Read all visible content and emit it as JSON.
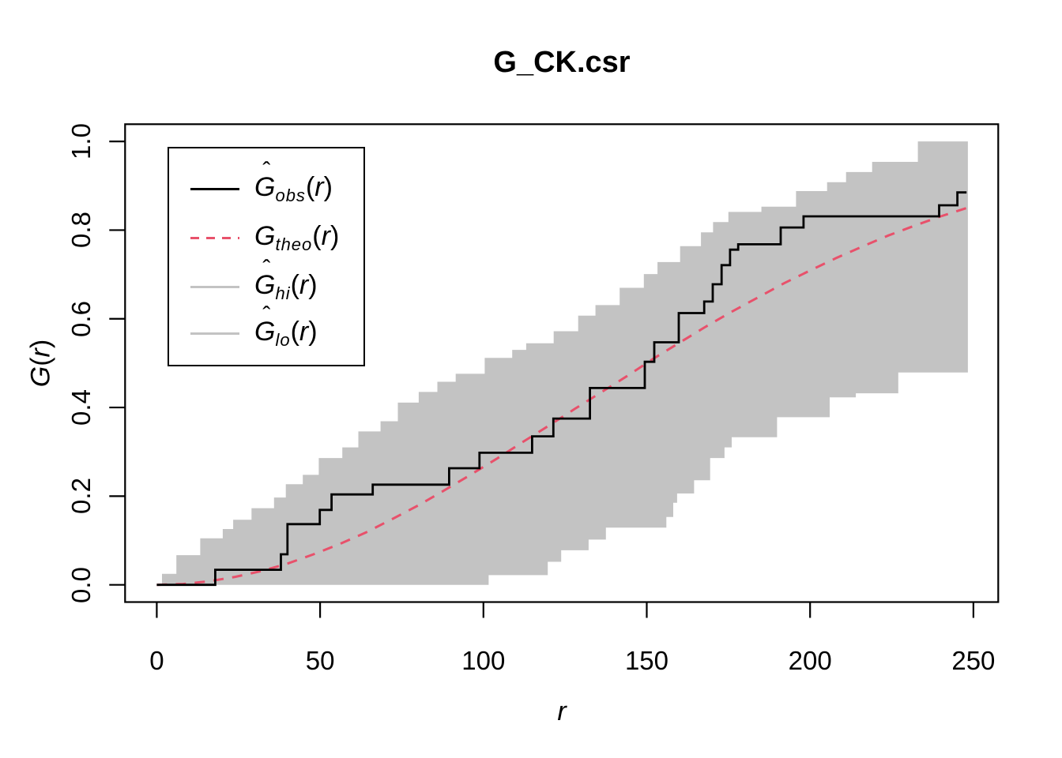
{
  "title": "G_CK.csr",
  "axes": {
    "x": {
      "label": "r",
      "ticks": [
        0,
        50,
        100,
        150,
        200,
        250
      ]
    },
    "y": {
      "label_var": "G",
      "label_open": "(",
      "label_arg": "r",
      "label_close": ")",
      "tick_labels": [
        "0.0",
        "0.2",
        "0.4",
        "0.6",
        "0.8",
        "1.0"
      ],
      "tick_values": [
        0,
        0.2,
        0.4,
        0.6,
        0.8,
        1.0
      ]
    }
  },
  "legend": {
    "entries": [
      {
        "hat": "ˆ",
        "var": "G",
        "sub": "obs",
        "open": "(",
        "argvar": "r",
        "close": ")",
        "style": "obs"
      },
      {
        "hat": "",
        "var": "G",
        "sub": "theo",
        "open": "(",
        "argvar": "r",
        "close": ")",
        "style": "theo"
      },
      {
        "hat": "ˆ",
        "var": "G",
        "sub": "hi",
        "open": "(",
        "argvar": "r",
        "close": ")",
        "style": "hi"
      },
      {
        "hat": "ˆ",
        "var": "G",
        "sub": "lo",
        "open": "(",
        "argvar": "r",
        "close": ")",
        "style": "lo"
      }
    ]
  },
  "chart_data": {
    "type": "line",
    "title": "G_CK.csr",
    "xlabel": "r",
    "ylabel": "G(r)",
    "xlim": [
      0,
      250
    ],
    "ylim": [
      0,
      1
    ],
    "plot_window": {
      "xlim": [
        -9.7,
        257.6
      ],
      "ylim": [
        -0.0388,
        1.0389
      ]
    },
    "grid": false,
    "legend_position": "top-left",
    "colors": {
      "obs": "#000000",
      "theo": "#e8516b",
      "envelope": "#c3c3c3",
      "legend_gray": "#c3c3c3"
    },
    "series": [
      {
        "name": "obs",
        "label": "G_obs(r)",
        "draw": "step",
        "color": "#000000",
        "points": [
          [
            0,
            0
          ],
          [
            17.9,
            0.034
          ],
          [
            38,
            0.069
          ],
          [
            40,
            0.137
          ],
          [
            49.9,
            0.169
          ],
          [
            53.5,
            0.204
          ],
          [
            66.1,
            0.226
          ],
          [
            89.5,
            0.263
          ],
          [
            98.8,
            0.298
          ],
          [
            114.9,
            0.335
          ],
          [
            121.4,
            0.375
          ],
          [
            132.6,
            0.444
          ],
          [
            149.4,
            0.503
          ],
          [
            152.3,
            0.547
          ],
          [
            159.8,
            0.613
          ],
          [
            167.6,
            0.639
          ],
          [
            170.2,
            0.678
          ],
          [
            172.9,
            0.721
          ],
          [
            175.5,
            0.756
          ],
          [
            178,
            0.768
          ],
          [
            191,
            0.806
          ],
          [
            198,
            0.831
          ],
          [
            239.5,
            0.856
          ],
          [
            245.1,
            0.885
          ],
          [
            247.9,
            0.885
          ]
        ]
      },
      {
        "name": "theo",
        "label": "G_theo(r)",
        "draw": "dashed-line",
        "color": "#e8516b",
        "points": [
          [
            0,
            0
          ],
          [
            8,
            0.002
          ],
          [
            16,
            0.008
          ],
          [
            24,
            0.018
          ],
          [
            32,
            0.031
          ],
          [
            40,
            0.048
          ],
          [
            48,
            0.069
          ],
          [
            56,
            0.092
          ],
          [
            64,
            0.118
          ],
          [
            72,
            0.148
          ],
          [
            80,
            0.179
          ],
          [
            88,
            0.213
          ],
          [
            96,
            0.248
          ],
          [
            104,
            0.284
          ],
          [
            112,
            0.322
          ],
          [
            120,
            0.359
          ],
          [
            128,
            0.397
          ],
          [
            136,
            0.434
          ],
          [
            144,
            0.471
          ],
          [
            152,
            0.51
          ],
          [
            160,
            0.546
          ],
          [
            168,
            0.582
          ],
          [
            176,
            0.616
          ],
          [
            184,
            0.648
          ],
          [
            192,
            0.68
          ],
          [
            200,
            0.709
          ],
          [
            208,
            0.737
          ],
          [
            216,
            0.763
          ],
          [
            224,
            0.788
          ],
          [
            232,
            0.81
          ],
          [
            240,
            0.831
          ],
          [
            248,
            0.85
          ]
        ]
      },
      {
        "name": "hi",
        "label": "G_hi(r)",
        "draw": "step",
        "color": "#c3c3c3",
        "points": [
          [
            0,
            0
          ],
          [
            1.6,
            0.025
          ],
          [
            6,
            0.067
          ],
          [
            13.3,
            0.105
          ],
          [
            20.2,
            0.126
          ],
          [
            23.4,
            0.147
          ],
          [
            29,
            0.173
          ],
          [
            35.9,
            0.197
          ],
          [
            39.5,
            0.227
          ],
          [
            44.7,
            0.248
          ],
          [
            49.6,
            0.286
          ],
          [
            56.8,
            0.31
          ],
          [
            61.7,
            0.346
          ],
          [
            68.5,
            0.369
          ],
          [
            73.8,
            0.411
          ],
          [
            80.2,
            0.435
          ],
          [
            85.9,
            0.458
          ],
          [
            91.5,
            0.476
          ],
          [
            100.4,
            0.512
          ],
          [
            108.8,
            0.53
          ],
          [
            113.1,
            0.545
          ],
          [
            121.5,
            0.572
          ],
          [
            129,
            0.607
          ],
          [
            134.3,
            0.631
          ],
          [
            141.7,
            0.67
          ],
          [
            149.1,
            0.701
          ],
          [
            153.3,
            0.728
          ],
          [
            160.2,
            0.764
          ],
          [
            166.6,
            0.795
          ],
          [
            170.3,
            0.818
          ],
          [
            175,
            0.841
          ],
          [
            185.1,
            0.853
          ],
          [
            195.7,
            0.888
          ],
          [
            205.2,
            0.908
          ],
          [
            211,
            0.931
          ],
          [
            219,
            0.954
          ],
          [
            233,
            1.0
          ],
          [
            248.3,
            1.0
          ]
        ]
      },
      {
        "name": "lo",
        "label": "G_lo(r)",
        "draw": "step",
        "color": "#c3c3c3",
        "points": [
          [
            0,
            0
          ],
          [
            101.6,
            0.022
          ],
          [
            119.7,
            0.052
          ],
          [
            123.8,
            0.078
          ],
          [
            132.2,
            0.102
          ],
          [
            137.5,
            0.129
          ],
          [
            156,
            0.153
          ],
          [
            158.1,
            0.185
          ],
          [
            159.3,
            0.206
          ],
          [
            164.5,
            0.236
          ],
          [
            169.4,
            0.286
          ],
          [
            173.8,
            0.31
          ],
          [
            176,
            0.333
          ],
          [
            189.9,
            0.378
          ],
          [
            206,
            0.423
          ],
          [
            214,
            0.432
          ],
          [
            227,
            0.479
          ],
          [
            248.3,
            0.479
          ]
        ]
      }
    ]
  }
}
